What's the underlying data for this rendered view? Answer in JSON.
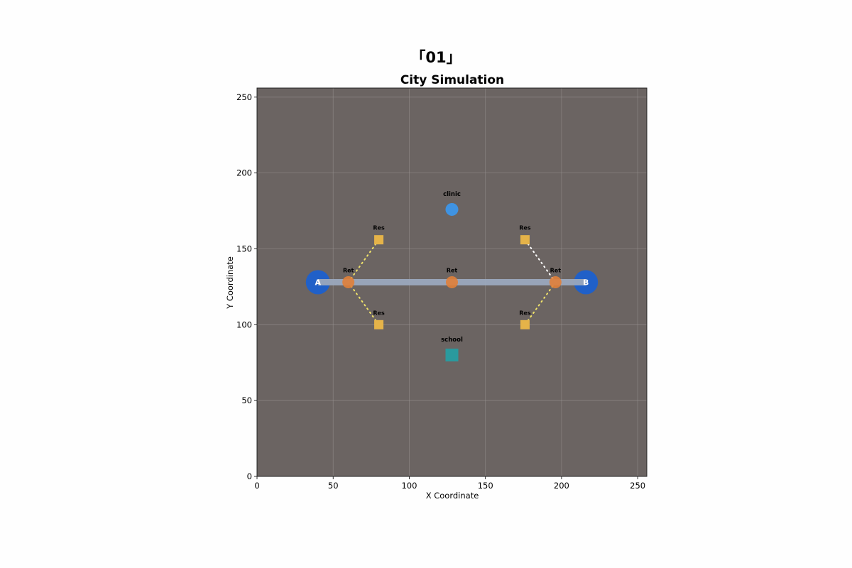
{
  "figure": {
    "suptitle": "「01」"
  },
  "chart_data": {
    "type": "scatter",
    "title": "City Simulation",
    "xlabel": "X Coordinate",
    "ylabel": "Y Coordinate",
    "xlim": [
      0,
      256
    ],
    "ylim": [
      0,
      256
    ],
    "xticks": [
      0,
      50,
      100,
      150,
      200,
      250
    ],
    "yticks": [
      0,
      50,
      100,
      150,
      200,
      250
    ],
    "grid": true,
    "colors": {
      "background": "#6b6462",
      "hub": "#2060c8",
      "road": "#9ba8bd",
      "retail": "#e07f3a",
      "residential": "#e5b349",
      "clinic": "#3f93e2",
      "school": "#2a9a9e",
      "path_yellow": "#f0e36a",
      "path_white": "#ffffff"
    },
    "hubs": [
      {
        "label": "A",
        "x": 40,
        "y": 128
      },
      {
        "label": "B",
        "x": 216,
        "y": 128
      }
    ],
    "road": {
      "from": [
        40,
        128
      ],
      "to": [
        216,
        128
      ]
    },
    "retail": [
      {
        "label": "Ret",
        "x": 60,
        "y": 128
      },
      {
        "label": "Ret",
        "x": 128,
        "y": 128
      },
      {
        "label": "Ret",
        "x": 196,
        "y": 128
      }
    ],
    "residential": [
      {
        "label": "Res",
        "x": 80,
        "y": 156
      },
      {
        "label": "Res",
        "x": 176,
        "y": 156
      },
      {
        "label": "Res",
        "x": 80,
        "y": 100
      },
      {
        "label": "Res",
        "x": 176,
        "y": 100
      }
    ],
    "poi": [
      {
        "label": "clinic",
        "x": 128,
        "y": 176,
        "shape": "circle"
      },
      {
        "label": "school",
        "x": 128,
        "y": 80,
        "shape": "square"
      }
    ],
    "paths": [
      {
        "from": [
          60,
          128
        ],
        "to": [
          80,
          156
        ],
        "color": "yellow"
      },
      {
        "from": [
          60,
          128
        ],
        "to": [
          80,
          100
        ],
        "color": "yellow"
      },
      {
        "from": [
          196,
          128
        ],
        "to": [
          176,
          156
        ],
        "color": "white"
      },
      {
        "from": [
          196,
          128
        ],
        "to": [
          176,
          100
        ],
        "color": "yellow"
      }
    ]
  }
}
